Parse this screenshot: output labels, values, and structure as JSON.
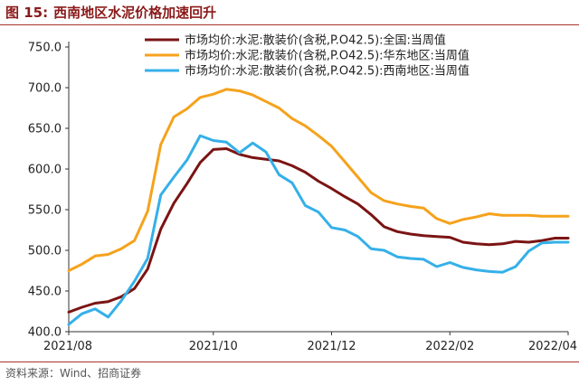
{
  "figure": {
    "title_number": "图 15:",
    "title_text": "西南地区水泥价格加速回升",
    "source": "资料来源：Wind、招商证券"
  },
  "colors": {
    "accent": "#a8322d",
    "axis": "#333333"
  },
  "chart_data": {
    "type": "line",
    "title": "西南地区水泥价格加速回升",
    "xlabel": "",
    "ylabel": "",
    "ylim": [
      400,
      750
    ],
    "yticks": [
      "400.0",
      "450.0",
      "500.0",
      "550.0",
      "600.0",
      "650.0",
      "700.0",
      "750.0"
    ],
    "xlim": [
      0,
      38
    ],
    "xtick_labels": [
      {
        "label": "2021/08",
        "index": 0
      },
      {
        "label": "2021/10",
        "index": 11
      },
      {
        "label": "2021/12",
        "index": 20
      },
      {
        "label": "2022/02",
        "index": 29
      },
      {
        "label": "2022/04",
        "index": 38
      }
    ],
    "legend_position": "top",
    "series": [
      {
        "name": "市场均价:水泥:散装价(含税,P.O42.5):全国:当周值",
        "color": "#7b1414",
        "values": [
          424,
          430,
          435,
          437,
          443,
          453,
          477,
          526,
          558,
          582,
          608,
          624,
          625,
          618,
          614,
          612,
          610,
          604,
          596,
          585,
          576,
          566,
          557,
          544,
          529,
          523,
          520,
          518,
          517,
          516,
          510,
          508,
          507,
          508,
          511,
          510,
          512,
          515,
          515
        ]
      },
      {
        "name": "市场均价:水泥:散装价(含税,P.O42.5):华东地区:当周值",
        "color": "#f5a21c",
        "values": [
          475,
          483,
          493,
          495,
          502,
          512,
          548,
          630,
          664,
          674,
          688,
          692,
          698,
          696,
          691,
          683,
          675,
          662,
          653,
          641,
          628,
          609,
          590,
          571,
          561,
          557,
          554,
          552,
          539,
          533,
          538,
          541,
          545,
          543,
          543,
          543,
          542,
          542,
          542
        ]
      },
      {
        "name": "市场均价:水泥:散装价(含税,P.O42.5):西南地区:当周值",
        "color": "#35b0e8",
        "values": [
          409,
          422,
          428,
          418,
          438,
          462,
          490,
          568,
          590,
          611,
          641,
          635,
          633,
          620,
          632,
          621,
          593,
          583,
          555,
          547,
          528,
          525,
          517,
          502,
          500,
          492,
          490,
          489,
          480,
          485,
          479,
          476,
          474,
          473,
          480,
          499,
          509,
          510,
          510
        ]
      }
    ]
  }
}
